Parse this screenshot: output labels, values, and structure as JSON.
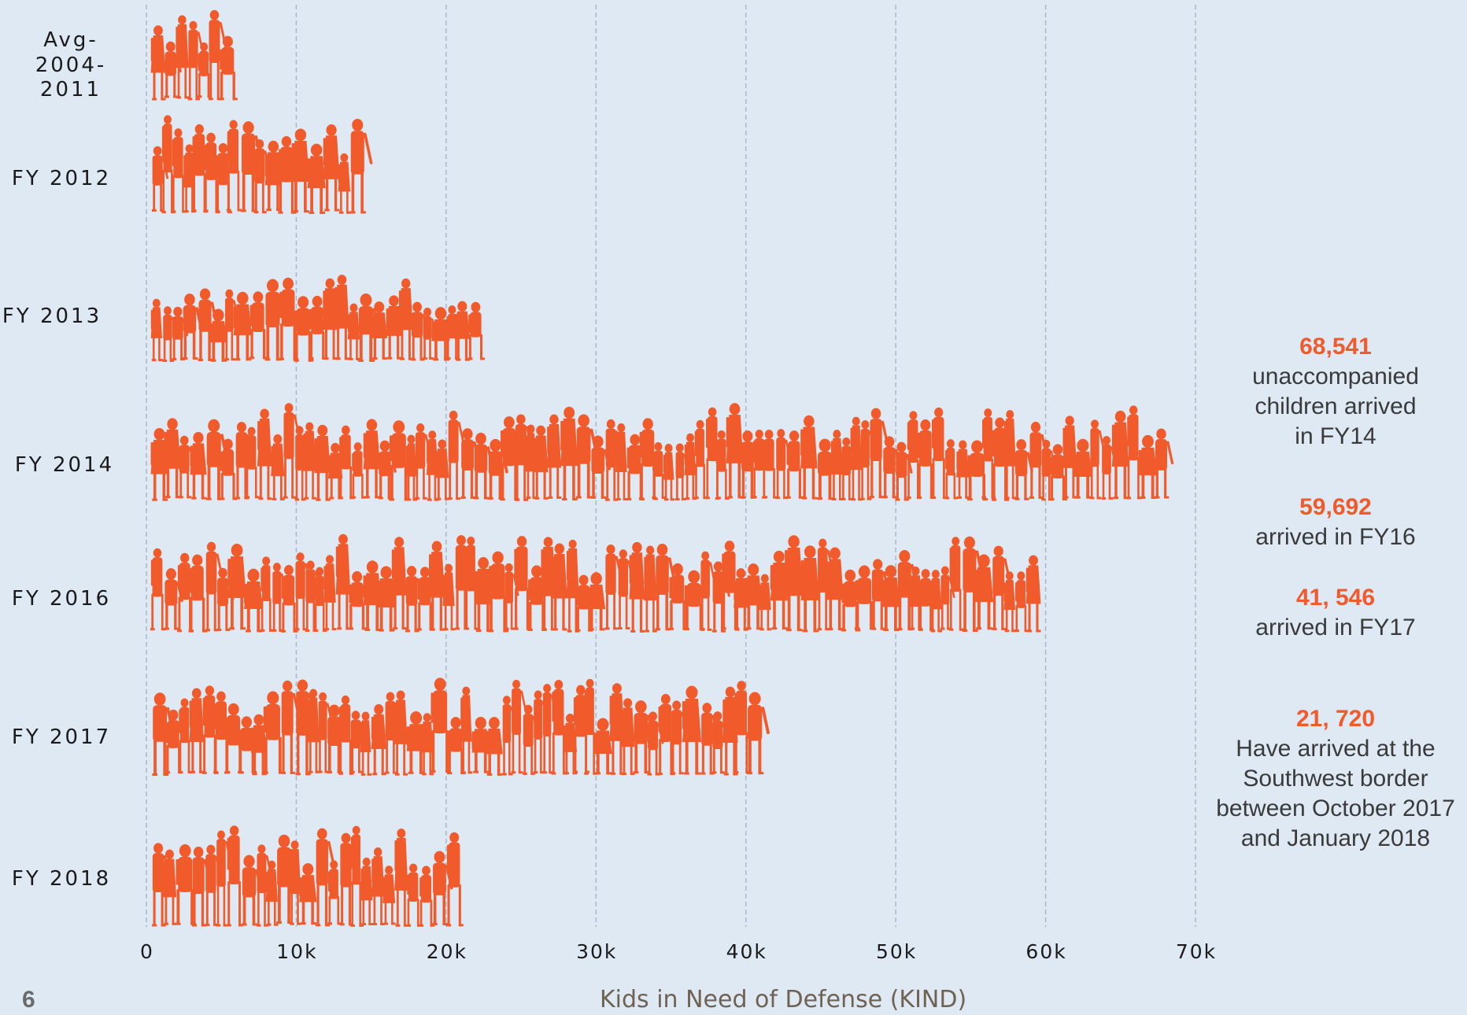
{
  "colors": {
    "figure": "#f15a2b",
    "background": "#dee9f4",
    "grid": "#a9b8c6",
    "annotation_value": "#f15a2b",
    "annotation_text": "#3a3a3a"
  },
  "chart_data": {
    "type": "bar",
    "orientation": "horizontal",
    "mark_style": "pictograph of children silhouettes",
    "categories": [
      "Avg-2004-2011",
      "FY 2012",
      "FY 2013",
      "FY 2014",
      "FY 2016",
      "FY 2017",
      "FY 2018"
    ],
    "category_label_lines": [
      [
        "Avg-",
        "2004-",
        "2011"
      ],
      [
        "FY 2012"
      ],
      [
        "FY 2013"
      ],
      [
        "FY 2014"
      ],
      [
        "FY 2016"
      ],
      [
        "FY 2017"
      ],
      [
        "FY 2018"
      ]
    ],
    "values": [
      6500,
      15000,
      23000,
      68541,
      59692,
      41546,
      21720
    ],
    "xlim": [
      0,
      70000
    ],
    "x_ticks": [
      {
        "value": 0,
        "label": "0"
      },
      {
        "value": 10000,
        "label": "10k"
      },
      {
        "value": 20000,
        "label": "20k"
      },
      {
        "value": 30000,
        "label": "30k"
      },
      {
        "value": 40000,
        "label": "40k"
      },
      {
        "value": 50000,
        "label": "50k"
      },
      {
        "value": 60000,
        "label": "60k"
      },
      {
        "value": 70000,
        "label": "70k"
      }
    ],
    "grid": true,
    "annotations": [
      {
        "value_text": "68,541",
        "lines": [
          "unaccompanied",
          "children arrived",
          "in FY14"
        ]
      },
      {
        "value_text": "59,692",
        "lines": [
          "arrived in FY16"
        ]
      },
      {
        "value_text": "41, 546",
        "lines": [
          "arrived in FY17"
        ]
      },
      {
        "value_text": "21, 720",
        "lines": [
          "Have arrived at the",
          "Southwest border",
          "between October 2017",
          "and January 2018"
        ]
      }
    ]
  },
  "footer": {
    "page_number": "6",
    "source": "Kids in Need of Defense (KIND)"
  }
}
